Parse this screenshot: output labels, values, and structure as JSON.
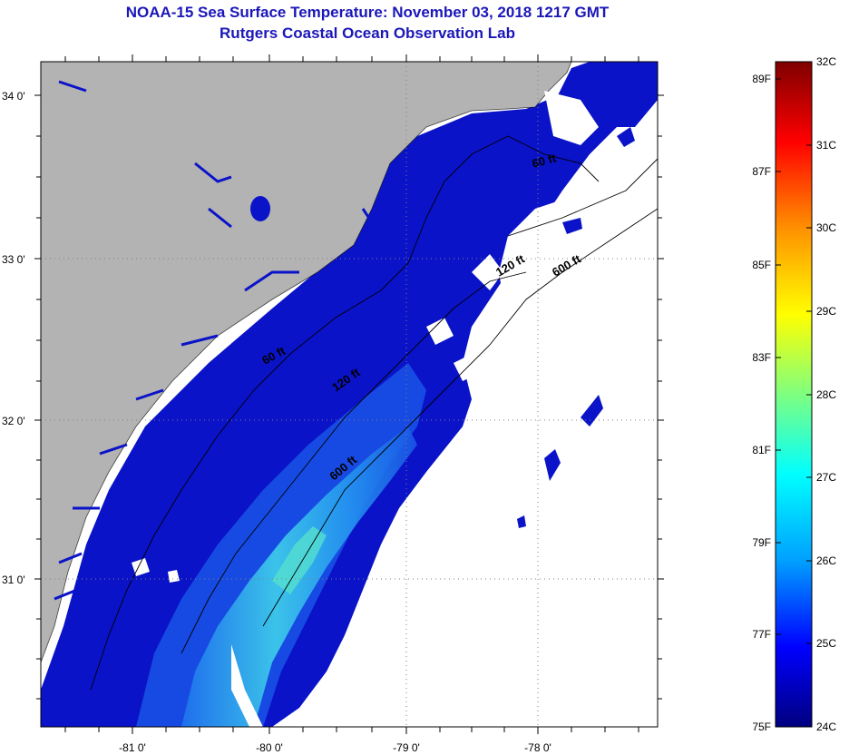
{
  "header": {
    "title": "NOAA-15 Sea Surface Temperature:  November 03, 2018 1217 GMT",
    "subtitle": "Rutgers Coastal Ocean Observation Lab"
  },
  "map": {
    "lon_labels": [
      "-81 0'",
      "-80 0'",
      "-79 0'",
      "-78 0'"
    ],
    "lat_labels": [
      "34 0'",
      "33 0'",
      "32 0'",
      "31 0'"
    ],
    "contour_labels": [
      "60 ft",
      "120 ft",
      "600 ft",
      "60 ft",
      "120 ft",
      "600 ft"
    ],
    "colors": {
      "land": "#b3b3b3",
      "coastal_water": "#0a13c8",
      "mid_water": "#1a55e6",
      "warm_water": "#3fd0ea",
      "cloud_mask": "#ffffff"
    }
  },
  "colorbar": {
    "fahrenheit_labels": [
      "89F",
      "87F",
      "85F",
      "83F",
      "81F",
      "79F",
      "77F",
      "75F"
    ],
    "celsius_labels": [
      "32C",
      "31C",
      "30C",
      "29C",
      "28C",
      "27C",
      "26C",
      "25C",
      "24C"
    ],
    "gradient": [
      "#00007f",
      "#0000ff",
      "#00a0ff",
      "#00ffff",
      "#7fff7f",
      "#ffff00",
      "#ff9000",
      "#ff0000",
      "#7f0000"
    ]
  }
}
